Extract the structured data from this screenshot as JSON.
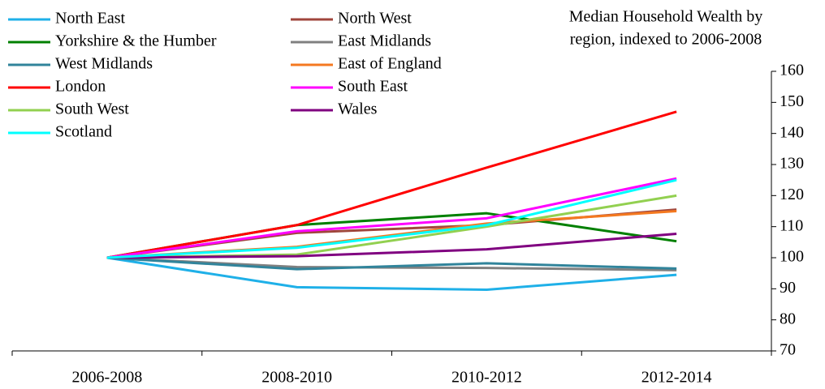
{
  "chart_data": {
    "type": "line",
    "title": [
      "Median Household Wealth by",
      "region, indexed to 2006-2008"
    ],
    "categories": [
      "2006-2008",
      "2008-2010",
      "2010-2012",
      "2012-2014"
    ],
    "series": [
      {
        "name": "North East",
        "color": "#1fb0e8",
        "values": [
          100,
          90.5,
          89.7,
          94.5
        ]
      },
      {
        "name": "North West",
        "color": "#a0463c",
        "values": [
          100,
          108,
          110.5,
          115.5
        ]
      },
      {
        "name": "Yorkshire & the Humber",
        "color": "#008000",
        "values": [
          100,
          110.5,
          114.3,
          105.3
        ]
      },
      {
        "name": "East Midlands",
        "color": "#808080",
        "values": [
          100,
          97,
          96.7,
          96
        ]
      },
      {
        "name": "West Midlands",
        "color": "#31849b",
        "values": [
          100,
          96.3,
          98.2,
          96.5
        ]
      },
      {
        "name": "East of England",
        "color": "#f47920",
        "values": [
          100,
          103.5,
          111,
          115
        ]
      },
      {
        "name": "London",
        "color": "#ff0000",
        "values": [
          100,
          110.5,
          129,
          147
        ]
      },
      {
        "name": "South East",
        "color": "#ff00ff",
        "values": [
          100,
          108.5,
          112.7,
          125.5
        ]
      },
      {
        "name": "South West",
        "color": "#92d050",
        "values": [
          100,
          101,
          110,
          120
        ]
      },
      {
        "name": "Wales",
        "color": "#800080",
        "values": [
          100,
          100.5,
          102.7,
          107.7
        ]
      },
      {
        "name": "Scotland",
        "color": "#00ffff",
        "values": [
          100,
          103.2,
          110.5,
          125
        ]
      }
    ],
    "ylim": [
      70,
      160
    ],
    "yticks": [
      70,
      80,
      90,
      100,
      110,
      120,
      130,
      140,
      150,
      160
    ],
    "y_axis_side": "right",
    "grid": false
  }
}
